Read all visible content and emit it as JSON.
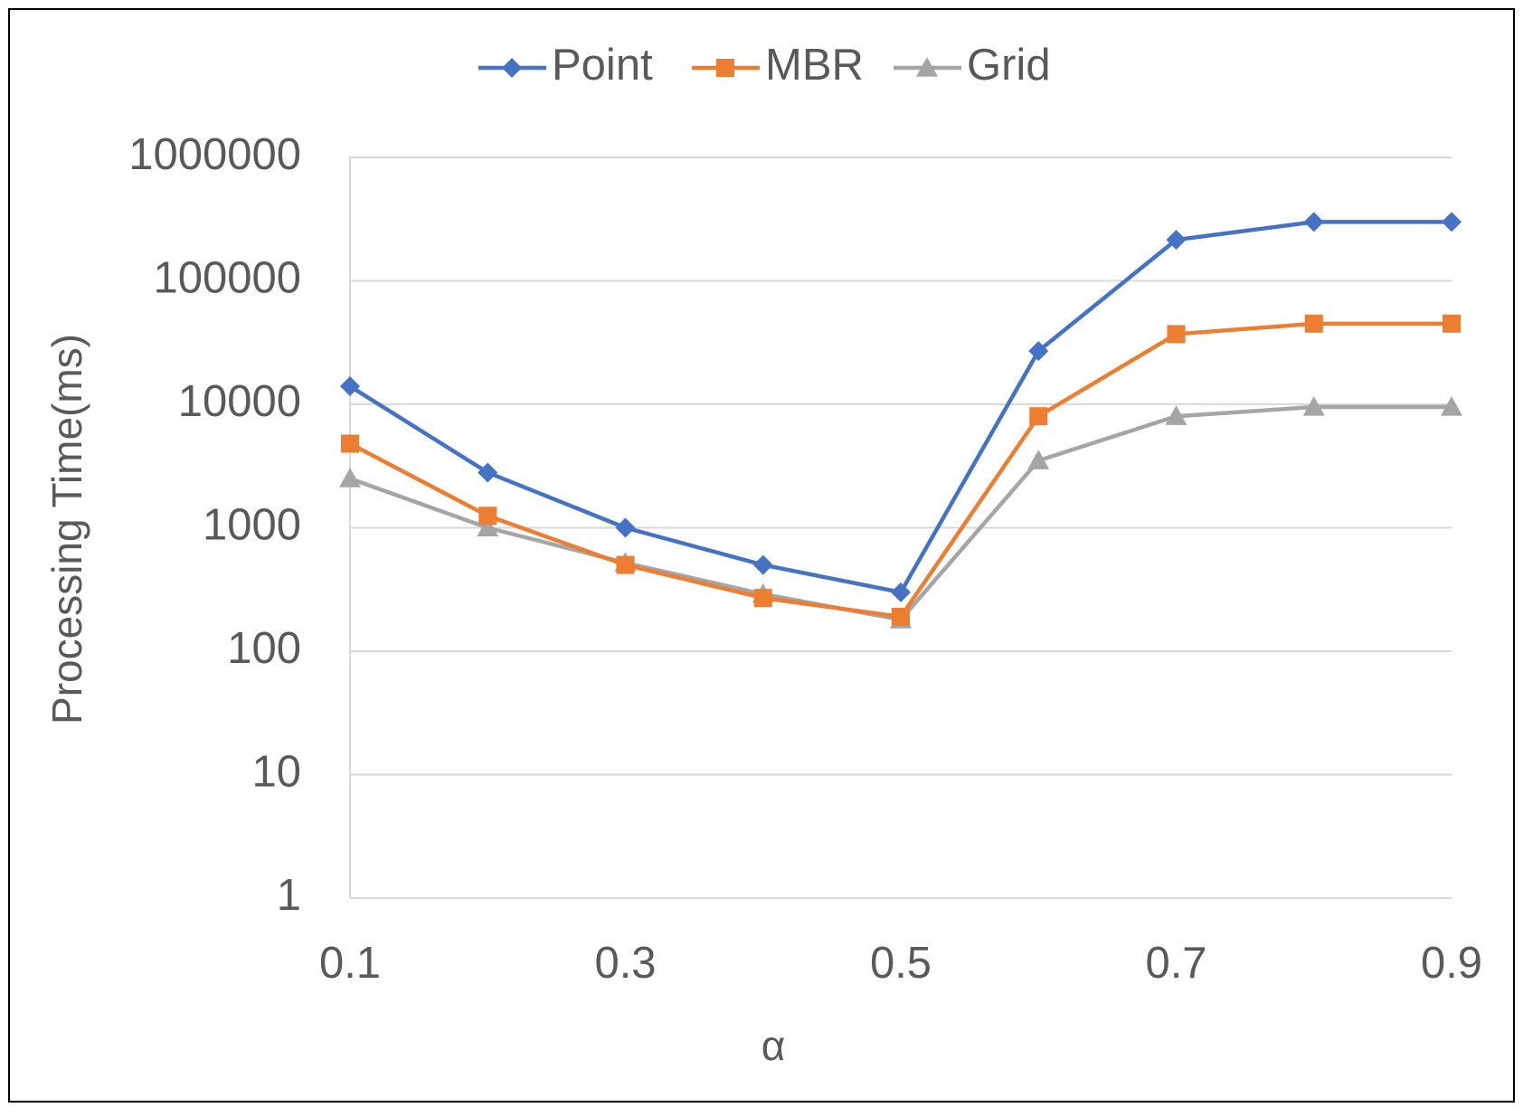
{
  "chart_data": {
    "type": "line",
    "xlabel": "α",
    "ylabel": "Processing Time(ms)",
    "y_scale": "log",
    "ylim": [
      1,
      1000000
    ],
    "xlim": [
      0.1,
      0.9
    ],
    "x": [
      0.1,
      0.2,
      0.3,
      0.4,
      0.5,
      0.6,
      0.7,
      0.8,
      0.9
    ],
    "x_tick_labels": [
      "0.1",
      "0.3",
      "0.5",
      "0.7",
      "0.9"
    ],
    "x_tick_values": [
      0.1,
      0.3,
      0.5,
      0.7,
      0.9
    ],
    "y_tick_labels": [
      "1",
      "10",
      "100",
      "1000",
      "10000",
      "100000",
      "1000000"
    ],
    "y_tick_values": [
      1,
      10,
      100,
      1000,
      10000,
      100000,
      1000000
    ],
    "grid": "horizontal",
    "legend_position": "top-center",
    "series": [
      {
        "name": "Point",
        "color": "#4472C4",
        "marker": "diamond",
        "values": [
          14000,
          2800,
          1000,
          500,
          300,
          27000,
          215000,
          300000,
          300000
        ]
      },
      {
        "name": "MBR",
        "color": "#ED7D31",
        "marker": "square",
        "values": [
          4800,
          1250,
          500,
          270,
          190,
          8000,
          37000,
          45000,
          45000
        ]
      },
      {
        "name": "Grid",
        "color": "#A5A5A5",
        "marker": "triangle",
        "values": [
          2500,
          1000,
          520,
          290,
          180,
          3500,
          8000,
          9500,
          9500
        ]
      }
    ]
  }
}
